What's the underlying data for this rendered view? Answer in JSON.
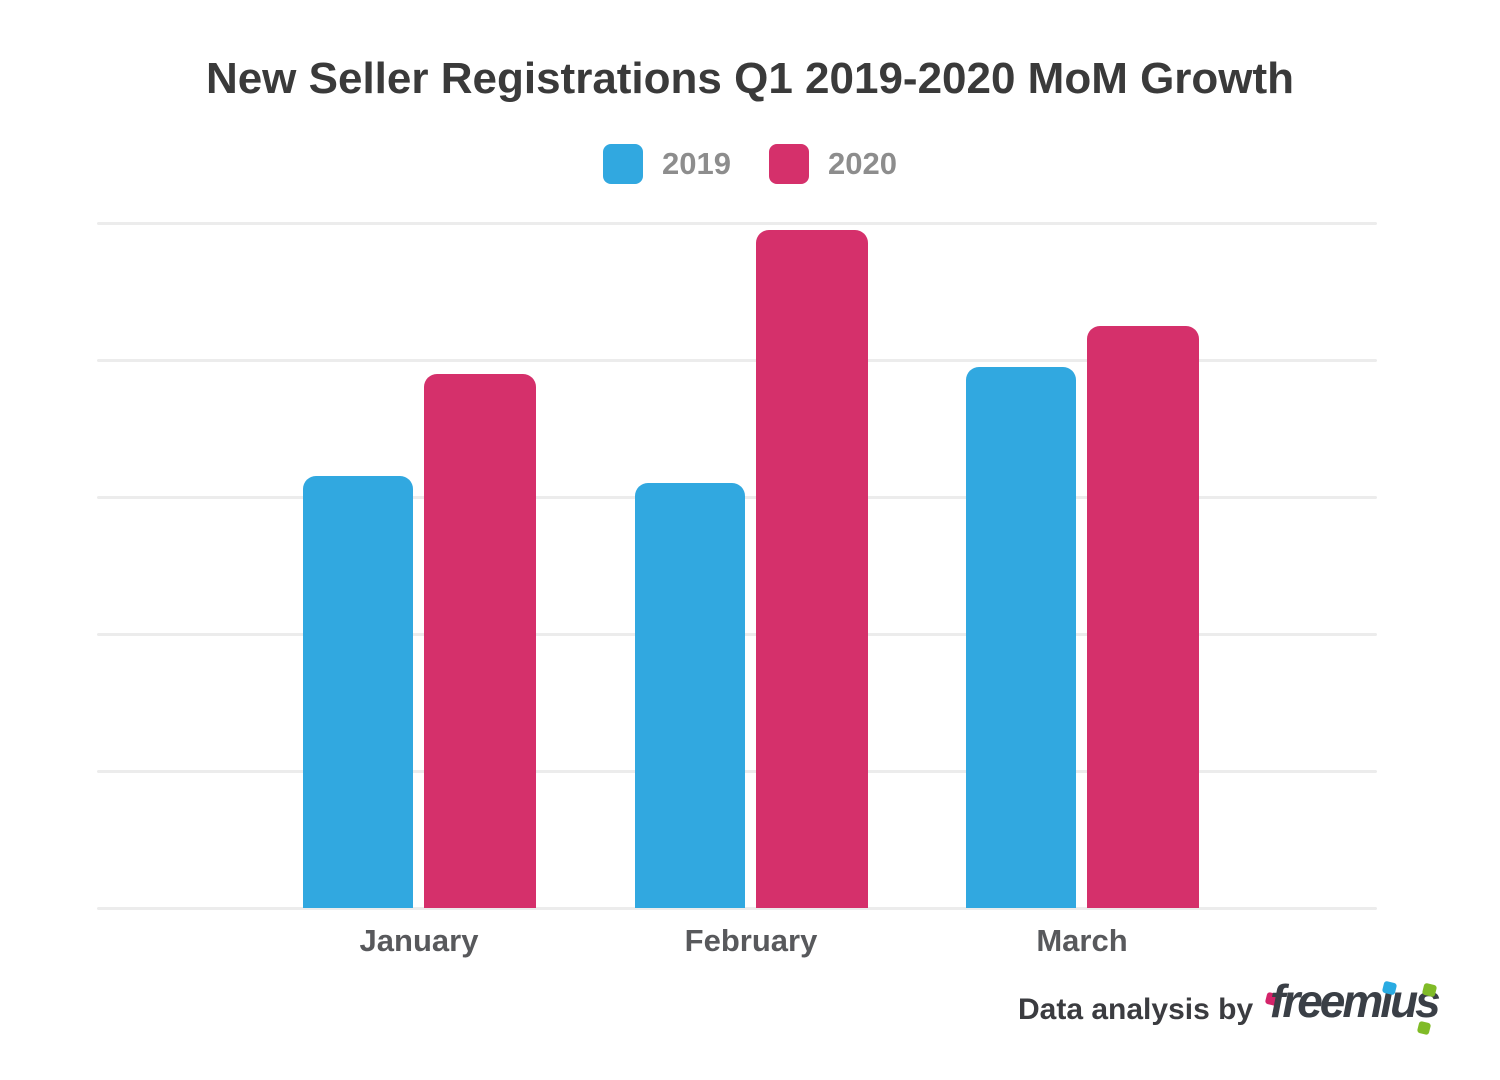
{
  "title": "New Seller Registrations Q1 2019-2020 MoM Growth",
  "legend": {
    "items": [
      {
        "label": "2019",
        "color": "#31A8E0"
      },
      {
        "label": "2020",
        "color": "#D5306B"
      }
    ]
  },
  "chart_data": {
    "type": "bar",
    "title": "New Seller Registrations Q1 2019-2020 MoM Growth",
    "categories": [
      "January",
      "February",
      "March"
    ],
    "series": [
      {
        "name": "2019",
        "color": "#31A8E0",
        "values": [
          63,
          62,
          79
        ]
      },
      {
        "name": "2020",
        "color": "#D5306B",
        "values": [
          78,
          99,
          85
        ]
      }
    ],
    "xlabel": "",
    "ylabel": "",
    "y_axis_labels_visible": false,
    "ylim": [
      0,
      100
    ],
    "gridline_count": 6,
    "grid": "horizontal",
    "legend_position": "top-center",
    "note": "No numeric y-axis tick labels are shown in the image; values are estimated as percent of the top gridline (baseline = 0, top gridline = 100)."
  },
  "footer": {
    "label": "Data analysis by",
    "logo_text": "freemius"
  },
  "colors": {
    "series_2019": "#31A8E0",
    "series_2020": "#D5306B",
    "gridline": "#ECECEC",
    "title_text": "#3A3A3A",
    "axis_label_text": "#58595C",
    "legend_text": "#8D8D8D",
    "footer_text": "#3B3C40",
    "logo_text": "#3A3F46",
    "logo_cyan": "#29ABE2",
    "logo_green": "#80BB27",
    "logo_pink": "#D4246A",
    "background": "#FFFFFF"
  }
}
